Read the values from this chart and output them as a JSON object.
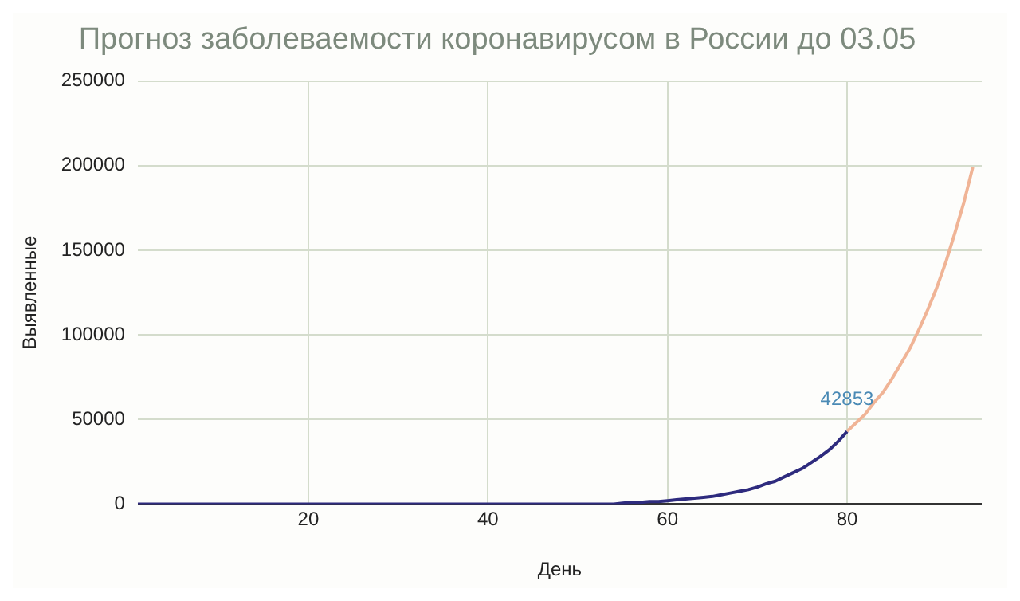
{
  "chart_data": {
    "type": "line",
    "title": "Прогноз заболеваемости коронавирусом в России до 03.05",
    "xlabel": "День",
    "ylabel": "Выявленные",
    "xlim": [
      1,
      95
    ],
    "xticks": [
      20,
      40,
      60,
      80
    ],
    "ylim": [
      0,
      250000
    ],
    "yticks": [
      0,
      50000,
      100000,
      150000,
      200000,
      250000
    ],
    "grid": true,
    "legend": false,
    "marker": "none",
    "series": [
      {
        "color": "#2e2b7e",
        "x": [
          1,
          2,
          3,
          4,
          5,
          6,
          7,
          8,
          9,
          10,
          11,
          12,
          13,
          14,
          15,
          16,
          17,
          18,
          19,
          20,
          21,
          22,
          23,
          24,
          25,
          26,
          27,
          28,
          29,
          30,
          31,
          32,
          33,
          34,
          35,
          36,
          37,
          38,
          39,
          40,
          41,
          42,
          43,
          44,
          45,
          46,
          47,
          48,
          49,
          50,
          51,
          52,
          53,
          54,
          55,
          56,
          57,
          58,
          59,
          60,
          61,
          62,
          63,
          64,
          65,
          66,
          67,
          68,
          69,
          70,
          71,
          72,
          73,
          74,
          75,
          76,
          77,
          78,
          79,
          80
        ],
        "values": [
          0,
          0,
          0,
          0,
          0,
          0,
          0,
          0,
          0,
          0,
          0,
          0,
          0,
          0,
          0,
          0,
          0,
          0,
          0,
          0,
          0,
          0,
          0,
          0,
          0,
          0,
          0,
          0,
          0,
          0,
          0,
          0,
          0,
          0,
          0,
          0,
          0,
          0,
          0,
          0,
          0,
          0,
          0,
          0,
          0,
          0,
          0,
          0,
          0,
          0,
          0,
          0,
          0,
          0,
          500,
          1000,
          1000,
          1500,
          1500,
          2000,
          2500,
          3000,
          3500,
          4000,
          4500,
          5500,
          6500,
          7500,
          8500,
          10000,
          12000,
          13500,
          16000,
          18500,
          21000,
          24500,
          28000,
          32000,
          37000,
          42853
        ],
        "value_labels": [
          null,
          null,
          null,
          null,
          null,
          null,
          null,
          null,
          null,
          null,
          null,
          null,
          null,
          null,
          null,
          null,
          null,
          null,
          null,
          null,
          null,
          null,
          null,
          null,
          null,
          null,
          null,
          null,
          null,
          null,
          null,
          null,
          null,
          null,
          null,
          null,
          null,
          null,
          null,
          null,
          null,
          null,
          null,
          null,
          null,
          null,
          null,
          null,
          null,
          null,
          null,
          null,
          null,
          null,
          null,
          null,
          null,
          null,
          null,
          null,
          null,
          null,
          null,
          null,
          null,
          null,
          null,
          null,
          null,
          null,
          null,
          null,
          null,
          null,
          null,
          null,
          null,
          null,
          null,
          "42853"
        ]
      },
      {
        "color": "#f0b496",
        "x": [
          80,
          81,
          82,
          83,
          84,
          85,
          86,
          87,
          88,
          89,
          90,
          91,
          92,
          93,
          94
        ],
        "values": [
          43000,
          48000,
          53000,
          60000,
          66000,
          74000,
          83000,
          92000,
          103000,
          115000,
          128000,
          143000,
          160000,
          178000,
          199000
        ]
      }
    ]
  }
}
